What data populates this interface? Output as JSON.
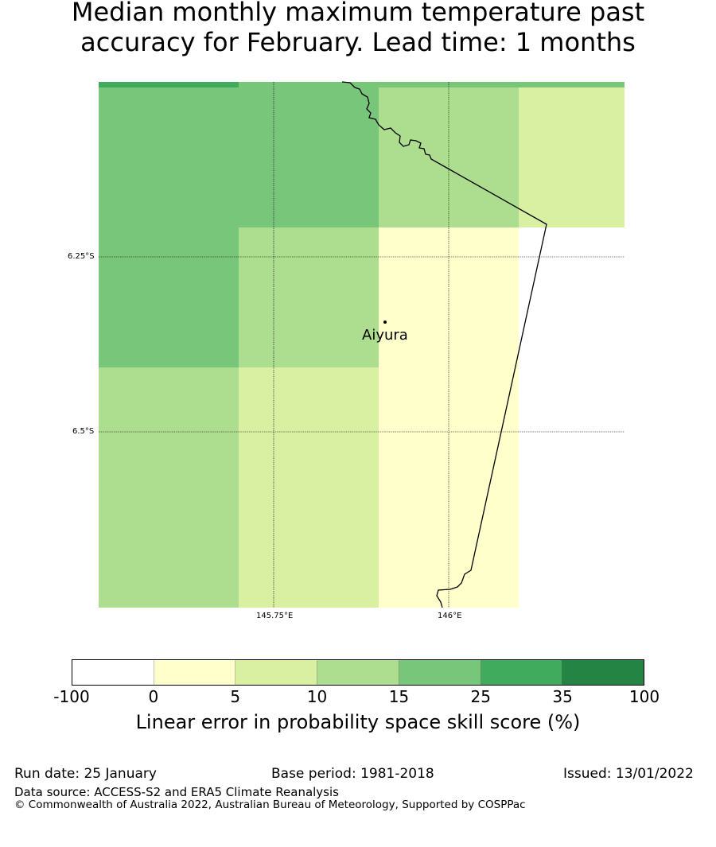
{
  "title": {
    "line1": "Median monthly maximum temperature past",
    "line2": "accuracy for February. Lead time: 1 months"
  },
  "map": {
    "lat_labels": [
      "6.25°S",
      "6.5°S"
    ],
    "lon_labels": [
      "145.75°E",
      "146°E"
    ],
    "place": {
      "name": "Aiyura",
      "marker": "location-dot"
    },
    "cell_colors": {
      "green_band": "#41ab5d",
      "skill_15_25": "#78c67a",
      "skill_10_15": "#addd8e",
      "skill_5_10": "#d9f0a3",
      "skill_0_5": "#ffffcc",
      "no_skill": "#ffffff"
    },
    "coastline_color": "#000000"
  },
  "colorbar": {
    "ticks": [
      "-100",
      "0",
      "5",
      "10",
      "15",
      "25",
      "35",
      "100"
    ],
    "colors": [
      "#ffffff",
      "#ffffcc",
      "#d9f0a3",
      "#addd8e",
      "#78c67a",
      "#41ab5d",
      "#238443"
    ],
    "label": "Linear error in probability space skill score (%)"
  },
  "footer": {
    "run_date": "Run date: 25 January",
    "base_period": "Base period: 1981-2018",
    "issued": "Issued: 13/01/2022",
    "data_source": "Data source: ACCESS-S2 and ERA5 Climate Reanalysis",
    "copyright": "© Commonwealth of Australia 2022, Australian Bureau of Meteorology, Supported by COSPPac"
  }
}
